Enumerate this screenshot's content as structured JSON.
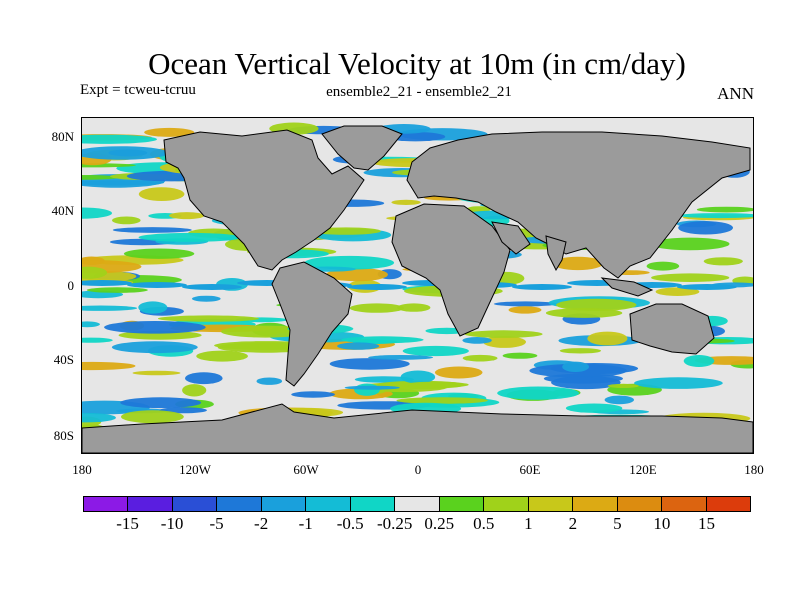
{
  "title": "Ocean Vertical Velocity at 10m (in cm/day)",
  "expt": "Expt = tcweu-tcruu",
  "subtitle": "ensemble2_21 - ensemble2_21",
  "season": "ANN",
  "map": {
    "projection": "cylindrical-equidistant",
    "lon_range": [
      -180,
      180
    ],
    "lat_range": [
      -90,
      90
    ],
    "land_color": "#9b9b9b",
    "background_color": "#e6e6e6",
    "lat_ticks": [
      "80N",
      "40N",
      "0",
      "40S",
      "80S"
    ],
    "lon_ticks": [
      "180",
      "120W",
      "60W",
      "0",
      "60E",
      "120E",
      "180"
    ]
  },
  "colorbar": {
    "colors": [
      "#8c1ae6",
      "#5a1ee0",
      "#2a4fd6",
      "#1e78d8",
      "#1aa0dc",
      "#14bcd6",
      "#10d6c6",
      "#e6e6e6",
      "#5ad21e",
      "#a0d21a",
      "#c8c81a",
      "#dcaa14",
      "#dc8c10",
      "#dc6410",
      "#dc3c0c"
    ],
    "labels": [
      "-15",
      "-10",
      "-5",
      "-2",
      "-1",
      "-0.5",
      "-0.25",
      "0.25",
      "0.5",
      "1",
      "2",
      "5",
      "10",
      "15"
    ]
  }
}
